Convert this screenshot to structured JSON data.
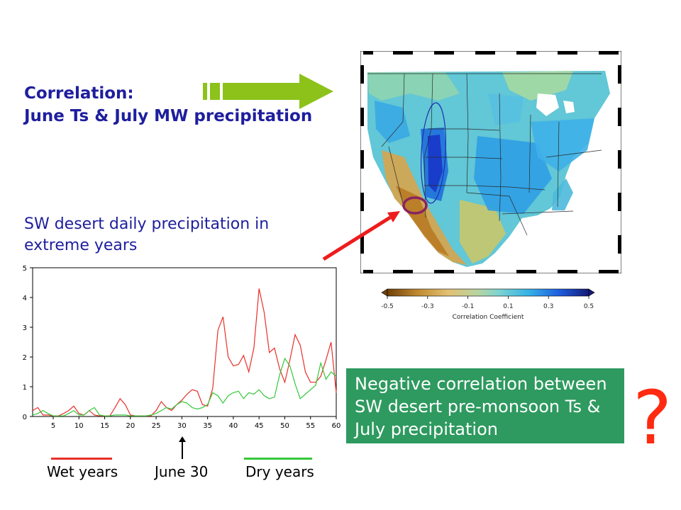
{
  "heading": {
    "line1": "Correlation:",
    "line2": "June Ts & July MW precipitation"
  },
  "subheading": {
    "line1": "SW desert daily precipitation in",
    "line2": "extreme years"
  },
  "note": {
    "line1": "Negative correlation between",
    "line2": "SW desert pre-monsoon Ts &",
    "line3": "July precipitation"
  },
  "question_mark": "?",
  "colors": {
    "heading": "#1e1e9e",
    "wet": "#e8302a",
    "dry": "#34c83a",
    "arrow": "#8cc21a",
    "note_bg": "#2e9a5f",
    "pointer": "#ee1c1c",
    "question": "#ff2a10"
  },
  "map": {
    "colorbar_ticks": [
      "-0.5",
      "-0.3",
      "-0.1",
      "0.1",
      "0.3",
      "0.5"
    ],
    "colorbar_label": "Correlation Coefficient"
  },
  "legend": {
    "wet": "Wet years",
    "marker": "June 30",
    "dry": "Dry years"
  },
  "chart_data": {
    "type": "line",
    "title": "",
    "xlabel": "",
    "ylabel": "",
    "xlim": [
      1,
      60
    ],
    "ylim": [
      0,
      5
    ],
    "x_ticks": [
      5,
      10,
      15,
      20,
      25,
      30,
      35,
      40,
      45,
      50,
      55,
      60
    ],
    "y_ticks": [
      0,
      1,
      2,
      3,
      4,
      5
    ],
    "series": [
      {
        "name": "Wet years",
        "color": "#e8302a",
        "x": [
          1,
          2,
          3,
          4,
          5,
          6,
          7,
          8,
          9,
          10,
          11,
          12,
          13,
          14,
          15,
          16,
          17,
          18,
          19,
          20,
          21,
          22,
          23,
          24,
          25,
          26,
          27,
          28,
          29,
          30,
          31,
          32,
          33,
          34,
          35,
          36,
          37,
          38,
          39,
          40,
          41,
          42,
          43,
          44,
          45,
          46,
          47,
          48,
          49,
          50,
          51,
          52,
          53,
          54,
          55,
          56,
          57,
          58,
          59,
          60
        ],
        "y": [
          0.2,
          0.3,
          0.05,
          0.05,
          0.02,
          0.02,
          0.1,
          0.2,
          0.35,
          0.1,
          0.05,
          0.2,
          0.05,
          0.02,
          0.02,
          0.02,
          0.3,
          0.6,
          0.4,
          0.05,
          0.02,
          0.02,
          0.02,
          0.02,
          0.2,
          0.5,
          0.3,
          0.2,
          0.4,
          0.55,
          0.75,
          0.9,
          0.85,
          0.4,
          0.35,
          0.95,
          2.9,
          3.35,
          2.0,
          1.7,
          1.75,
          2.05,
          1.5,
          2.3,
          4.3,
          3.5,
          2.15,
          2.3,
          1.6,
          1.15,
          1.9,
          2.75,
          2.4,
          1.5,
          1.15,
          1.15,
          1.35,
          1.9,
          2.5,
          0.8
        ]
      },
      {
        "name": "Dry years",
        "color": "#34c83a",
        "x": [
          1,
          2,
          3,
          4,
          5,
          6,
          7,
          8,
          9,
          10,
          11,
          12,
          13,
          14,
          15,
          16,
          17,
          18,
          19,
          20,
          21,
          22,
          23,
          24,
          25,
          26,
          27,
          28,
          29,
          30,
          31,
          32,
          33,
          34,
          35,
          36,
          37,
          38,
          39,
          40,
          41,
          42,
          43,
          44,
          45,
          46,
          47,
          48,
          49,
          50,
          51,
          52,
          53,
          54,
          55,
          56,
          57,
          58,
          59,
          60
        ],
        "y": [
          0.05,
          0.1,
          0.2,
          0.1,
          0.02,
          0.02,
          0.02,
          0.1,
          0.2,
          0.05,
          0.05,
          0.2,
          0.3,
          0.05,
          0.02,
          0.02,
          0.05,
          0.05,
          0.05,
          0.02,
          0.02,
          0.02,
          0.02,
          0.05,
          0.1,
          0.2,
          0.3,
          0.25,
          0.4,
          0.5,
          0.45,
          0.3,
          0.25,
          0.3,
          0.4,
          0.8,
          0.7,
          0.45,
          0.7,
          0.8,
          0.85,
          0.6,
          0.8,
          0.75,
          0.9,
          0.7,
          0.6,
          0.65,
          1.4,
          1.95,
          1.7,
          1.1,
          0.6,
          0.75,
          0.9,
          1.05,
          1.8,
          1.25,
          1.5,
          1.35
        ]
      }
    ]
  }
}
